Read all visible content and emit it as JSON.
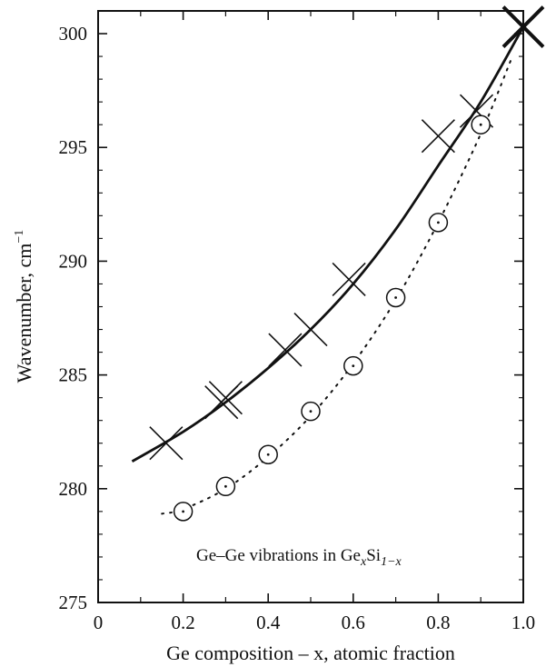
{
  "chart_data": {
    "type": "scatter",
    "title": "",
    "xlabel": "Ge composition – x, atomic fraction",
    "ylabel": "Wavenumber, cm",
    "ylabel_superscript": "−1",
    "xlim": [
      0,
      1.0
    ],
    "ylim": [
      275,
      301
    ],
    "x_ticks": [
      0,
      0.2,
      0.4,
      0.6,
      0.8,
      1.0
    ],
    "x_tick_labels": [
      "0",
      "0.2",
      "0.4",
      "0.6",
      "0.8",
      "1.0"
    ],
    "y_ticks": [
      275,
      280,
      285,
      290,
      295,
      300
    ],
    "y_tick_labels": [
      "275",
      "280",
      "285",
      "290",
      "295",
      "300"
    ],
    "grid": false,
    "annotation": {
      "prefix": "Ge–Ge vibrations in Ge",
      "sub1": "x",
      "mid": "Si",
      "sub2": "1−x"
    },
    "series": [
      {
        "marker": "cross",
        "line": "solid",
        "color": "#111111",
        "points": [
          {
            "x": 0.16,
            "y": 282.0
          },
          {
            "x": 0.29,
            "y": 283.8
          },
          {
            "x": 0.3,
            "y": 284.0
          },
          {
            "x": 0.44,
            "y": 286.1
          },
          {
            "x": 0.5,
            "y": 287.0
          },
          {
            "x": 0.59,
            "y": 289.2
          },
          {
            "x": 0.8,
            "y": 295.5
          },
          {
            "x": 0.89,
            "y": 296.6
          },
          {
            "x": 1.0,
            "y": 300.3
          }
        ],
        "fit_line": [
          {
            "x": 0.08,
            "y": 281.2
          },
          {
            "x": 0.2,
            "y": 282.5
          },
          {
            "x": 0.3,
            "y": 283.8
          },
          {
            "x": 0.4,
            "y": 285.3
          },
          {
            "x": 0.5,
            "y": 287.0
          },
          {
            "x": 0.6,
            "y": 289.0
          },
          {
            "x": 0.7,
            "y": 291.4
          },
          {
            "x": 0.8,
            "y": 294.2
          },
          {
            "x": 0.9,
            "y": 297.0
          },
          {
            "x": 1.0,
            "y": 300.3
          }
        ]
      },
      {
        "marker": "circle",
        "line": "dotted",
        "color": "#111111",
        "points": [
          {
            "x": 0.2,
            "y": 279.0
          },
          {
            "x": 0.3,
            "y": 280.1
          },
          {
            "x": 0.4,
            "y": 281.5
          },
          {
            "x": 0.5,
            "y": 283.4
          },
          {
            "x": 0.6,
            "y": 285.4
          },
          {
            "x": 0.7,
            "y": 288.4
          },
          {
            "x": 0.8,
            "y": 291.7
          },
          {
            "x": 0.9,
            "y": 296.0
          }
        ],
        "fit_line": [
          {
            "x": 0.15,
            "y": 278.9
          },
          {
            "x": 0.2,
            "y": 279.1
          },
          {
            "x": 0.3,
            "y": 280.0
          },
          {
            "x": 0.4,
            "y": 281.4
          },
          {
            "x": 0.5,
            "y": 283.2
          },
          {
            "x": 0.6,
            "y": 285.5
          },
          {
            "x": 0.7,
            "y": 288.3
          },
          {
            "x": 0.8,
            "y": 291.7
          },
          {
            "x": 0.9,
            "y": 295.6
          },
          {
            "x": 0.97,
            "y": 298.8
          }
        ]
      }
    ]
  }
}
